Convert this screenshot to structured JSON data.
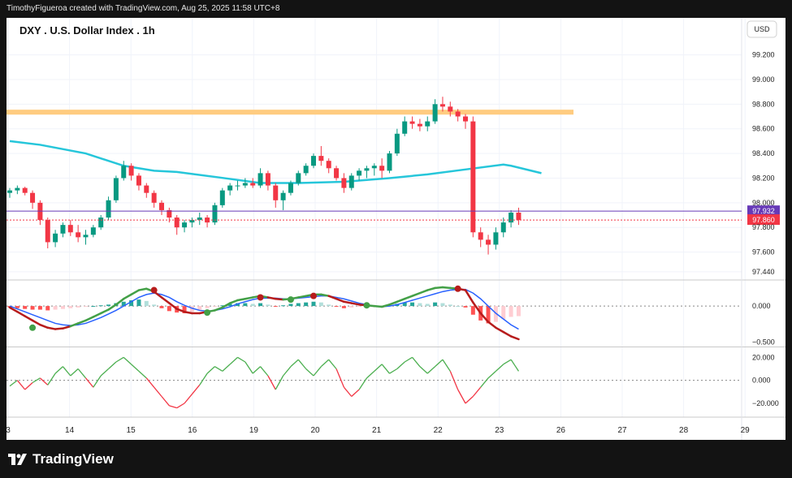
{
  "header": {
    "text": "TimothyFigueroa created with TradingView.com, Aug 25, 2025 11:58 UTC+8"
  },
  "footer": {
    "brand": "TradingView"
  },
  "chart_data": {
    "type": "candlestick",
    "title": "DXY . U.S. Dollar Index . 1h",
    "currency_label": "USD",
    "x_tick_labels": [
      "3",
      "14",
      "15",
      "16",
      "19",
      "20",
      "21",
      "22",
      "23",
      "26",
      "27",
      "28",
      "29"
    ],
    "price_axis": {
      "ticks": [
        97.44,
        97.6,
        97.8,
        98.0,
        98.2,
        98.4,
        98.6,
        98.8,
        99.0,
        99.2
      ],
      "tick_labels": [
        "97.440",
        "97.600",
        "97.800",
        "98.000",
        "98.200",
        "98.400",
        "98.600",
        "98.800",
        "99.000",
        "99.200"
      ],
      "range": [
        97.38,
        99.5
      ]
    },
    "price_labels": [
      {
        "value": 97.932,
        "label": "97.932",
        "color": "#673ab7"
      },
      {
        "value": 97.86,
        "label": "97.860",
        "color": "#f23645"
      }
    ],
    "resistance_zone": {
      "low": 98.715,
      "high": 98.755,
      "color": "#ffcc80"
    },
    "moving_average": {
      "color": "#26c6da",
      "points": [
        [
          0,
          98.5
        ],
        [
          4,
          98.47
        ],
        [
          10,
          98.4
        ],
        [
          15,
          98.3
        ],
        [
          19,
          98.26
        ],
        [
          22,
          98.25
        ],
        [
          27,
          98.21
        ],
        [
          33,
          98.16
        ],
        [
          38,
          98.16
        ],
        [
          44,
          98.17
        ],
        [
          50,
          98.2
        ],
        [
          55,
          98.23
        ],
        [
          60,
          98.27
        ],
        [
          65,
          98.31
        ],
        [
          66,
          98.3
        ],
        [
          70,
          98.24
        ]
      ]
    },
    "candles": [
      [
        98.08,
        98.12,
        98.04,
        98.1
      ],
      [
        98.1,
        98.14,
        98.07,
        98.12
      ],
      [
        98.12,
        98.13,
        98.06,
        98.08
      ],
      [
        98.08,
        98.1,
        97.95,
        98.0
      ],
      [
        98.0,
        98.02,
        97.82,
        97.86
      ],
      [
        97.86,
        97.88,
        97.63,
        97.68
      ],
      [
        97.68,
        97.78,
        97.64,
        97.75
      ],
      [
        97.75,
        97.84,
        97.72,
        97.82
      ],
      [
        97.82,
        97.86,
        97.73,
        97.76
      ],
      [
        97.76,
        97.82,
        97.68,
        97.72
      ],
      [
        97.72,
        97.78,
        97.66,
        97.74
      ],
      [
        97.74,
        97.82,
        97.72,
        97.8
      ],
      [
        97.8,
        97.9,
        97.78,
        97.88
      ],
      [
        97.88,
        98.05,
        97.86,
        98.02
      ],
      [
        98.02,
        98.22,
        98.0,
        98.2
      ],
      [
        98.2,
        98.34,
        98.18,
        98.3
      ],
      [
        98.3,
        98.32,
        98.18,
        98.22
      ],
      [
        98.22,
        98.24,
        98.1,
        98.14
      ],
      [
        98.14,
        98.16,
        98.04,
        98.08
      ],
      [
        98.08,
        98.1,
        97.96,
        98.0
      ],
      [
        98.0,
        98.02,
        97.9,
        97.94
      ],
      [
        97.94,
        97.96,
        97.84,
        97.88
      ],
      [
        97.88,
        97.9,
        97.74,
        97.8
      ],
      [
        97.8,
        97.86,
        97.76,
        97.84
      ],
      [
        97.84,
        97.88,
        97.8,
        97.86
      ],
      [
        97.86,
        97.92,
        97.82,
        97.88
      ],
      [
        97.88,
        97.9,
        97.8,
        97.84
      ],
      [
        97.84,
        98.0,
        97.82,
        97.98
      ],
      [
        97.98,
        98.12,
        97.96,
        98.1
      ],
      [
        98.1,
        98.16,
        98.06,
        98.14
      ],
      [
        98.14,
        98.18,
        98.1,
        98.14
      ],
      [
        98.14,
        98.2,
        98.12,
        98.16
      ],
      [
        98.16,
        98.2,
        98.12,
        98.14
      ],
      [
        98.14,
        98.28,
        98.12,
        98.24
      ],
      [
        98.24,
        98.26,
        98.1,
        98.14
      ],
      [
        98.14,
        98.16,
        97.96,
        98.02
      ],
      [
        98.02,
        98.1,
        97.94,
        98.08
      ],
      [
        98.08,
        98.18,
        98.06,
        98.16
      ],
      [
        98.16,
        98.26,
        98.14,
        98.24
      ],
      [
        98.24,
        98.32,
        98.22,
        98.3
      ],
      [
        98.3,
        98.4,
        98.28,
        98.38
      ],
      [
        98.38,
        98.46,
        98.3,
        98.34
      ],
      [
        98.34,
        98.36,
        98.24,
        98.28
      ],
      [
        98.28,
        98.3,
        98.18,
        98.2
      ],
      [
        98.2,
        98.24,
        98.08,
        98.12
      ],
      [
        98.12,
        98.24,
        98.1,
        98.22
      ],
      [
        98.22,
        98.28,
        98.18,
        98.26
      ],
      [
        98.26,
        98.3,
        98.2,
        98.28
      ],
      [
        98.28,
        98.32,
        98.22,
        98.3
      ],
      [
        98.3,
        98.36,
        98.2,
        98.26
      ],
      [
        98.26,
        98.42,
        98.24,
        98.4
      ],
      [
        98.4,
        98.6,
        98.38,
        98.56
      ],
      [
        98.56,
        98.7,
        98.54,
        98.66
      ],
      [
        98.66,
        98.7,
        98.6,
        98.64
      ],
      [
        98.64,
        98.68,
        98.58,
        98.62
      ],
      [
        98.62,
        98.7,
        98.58,
        98.66
      ],
      [
        98.66,
        98.84,
        98.64,
        98.8
      ],
      [
        98.8,
        98.86,
        98.74,
        98.78
      ],
      [
        98.78,
        98.82,
        98.7,
        98.74
      ],
      [
        98.74,
        98.76,
        98.66,
        98.7
      ],
      [
        98.7,
        98.72,
        98.6,
        98.66
      ],
      [
        98.66,
        98.7,
        97.72,
        97.76
      ],
      [
        97.76,
        97.8,
        97.64,
        97.7
      ],
      [
        97.7,
        97.74,
        97.58,
        97.66
      ],
      [
        97.66,
        97.8,
        97.62,
        97.76
      ],
      [
        97.76,
        97.88,
        97.72,
        97.84
      ],
      [
        97.84,
        97.94,
        97.8,
        97.92
      ],
      [
        97.92,
        97.96,
        97.82,
        97.86
      ]
    ],
    "macd": {
      "ticks": [
        0.0,
        -0.5
      ],
      "tick_labels": [
        "0.000",
        "−0.500"
      ],
      "range": [
        -0.55,
        0.35
      ],
      "histogram": [
        -0.02,
        -0.03,
        -0.04,
        -0.05,
        -0.05,
        -0.06,
        -0.05,
        -0.04,
        -0.03,
        -0.02,
        -0.01,
        0.0,
        0.01,
        0.02,
        0.04,
        0.06,
        0.08,
        0.09,
        0.07,
        0.02,
        -0.03,
        -0.07,
        -0.09,
        -0.1,
        -0.08,
        -0.05,
        -0.03,
        -0.01,
        0.01,
        0.03,
        0.04,
        0.04,
        0.03,
        0.04,
        0.02,
        -0.01,
        0.01,
        0.03,
        0.04,
        0.05,
        0.06,
        0.05,
        0.02,
        -0.01,
        -0.03,
        -0.02,
        -0.01,
        0.0,
        -0.01,
        -0.02,
        0.01,
        0.03,
        0.05,
        0.05,
        0.04,
        0.03,
        0.05,
        0.04,
        0.02,
        0.0,
        -0.02,
        -0.12,
        -0.2,
        -0.24,
        -0.22,
        -0.18,
        -0.15,
        -0.14
      ],
      "macd_line": [
        -0.02,
        -0.08,
        -0.14,
        -0.2,
        -0.26,
        -0.3,
        -0.32,
        -0.31,
        -0.28,
        -0.24,
        -0.2,
        -0.15,
        -0.1,
        -0.05,
        0.02,
        0.1,
        0.16,
        0.22,
        0.24,
        0.2,
        0.12,
        0.04,
        -0.04,
        -0.08,
        -0.1,
        -0.1,
        -0.08,
        -0.06,
        -0.02,
        0.04,
        0.08,
        0.1,
        0.12,
        0.14,
        0.12,
        0.1,
        0.09,
        0.1,
        0.12,
        0.14,
        0.16,
        0.16,
        0.14,
        0.1,
        0.06,
        0.04,
        0.02,
        0.01,
        0.0,
        -0.01,
        0.02,
        0.06,
        0.1,
        0.14,
        0.18,
        0.22,
        0.25,
        0.26,
        0.25,
        0.24,
        0.22,
        0.05,
        -0.1,
        -0.22,
        -0.3,
        -0.36,
        -0.42,
        -0.46
      ],
      "signal_line": [
        0.0,
        -0.04,
        -0.08,
        -0.12,
        -0.16,
        -0.2,
        -0.24,
        -0.26,
        -0.27,
        -0.26,
        -0.24,
        -0.2,
        -0.16,
        -0.11,
        -0.06,
        0.0,
        0.06,
        0.12,
        0.16,
        0.18,
        0.16,
        0.12,
        0.06,
        0.01,
        -0.03,
        -0.06,
        -0.07,
        -0.06,
        -0.04,
        -0.01,
        0.03,
        0.06,
        0.09,
        0.11,
        0.11,
        0.11,
        0.1,
        0.1,
        0.11,
        0.12,
        0.13,
        0.14,
        0.14,
        0.12,
        0.1,
        0.07,
        0.04,
        0.02,
        0.0,
        -0.01,
        0.0,
        0.02,
        0.05,
        0.08,
        0.11,
        0.14,
        0.17,
        0.2,
        0.22,
        0.23,
        0.23,
        0.18,
        0.1,
        0.0,
        -0.1,
        -0.18,
        -0.26,
        -0.32
      ],
      "cross_points": [
        [
          3,
          -0.3,
          "#43a047"
        ],
        [
          19,
          0.22,
          "#b71c1c"
        ],
        [
          26,
          -0.09,
          "#43a047"
        ],
        [
          33,
          0.12,
          "#b71c1c"
        ],
        [
          37,
          0.09,
          "#43a047"
        ],
        [
          40,
          0.14,
          "#b71c1c"
        ],
        [
          47,
          0.01,
          "#43a047"
        ],
        [
          59,
          0.24,
          "#b71c1c"
        ]
      ]
    },
    "oscillator": {
      "ticks": [
        20,
        0,
        -20
      ],
      "tick_labels": [
        "20.000",
        "0.000",
        "−20.000"
      ],
      "range": [
        -32,
        28
      ],
      "values": [
        -5,
        0,
        -8,
        -2,
        2,
        -4,
        6,
        12,
        4,
        10,
        2,
        -6,
        4,
        10,
        16,
        20,
        14,
        8,
        2,
        -6,
        -14,
        -22,
        -24,
        -20,
        -12,
        -4,
        6,
        12,
        8,
        14,
        20,
        16,
        6,
        12,
        4,
        -8,
        4,
        12,
        18,
        10,
        4,
        12,
        18,
        10,
        -6,
        -14,
        -8,
        2,
        8,
        14,
        6,
        10,
        16,
        20,
        12,
        6,
        12,
        18,
        8,
        -8,
        -20,
        -14,
        -6,
        2,
        8,
        14,
        18,
        8
      ]
    }
  }
}
